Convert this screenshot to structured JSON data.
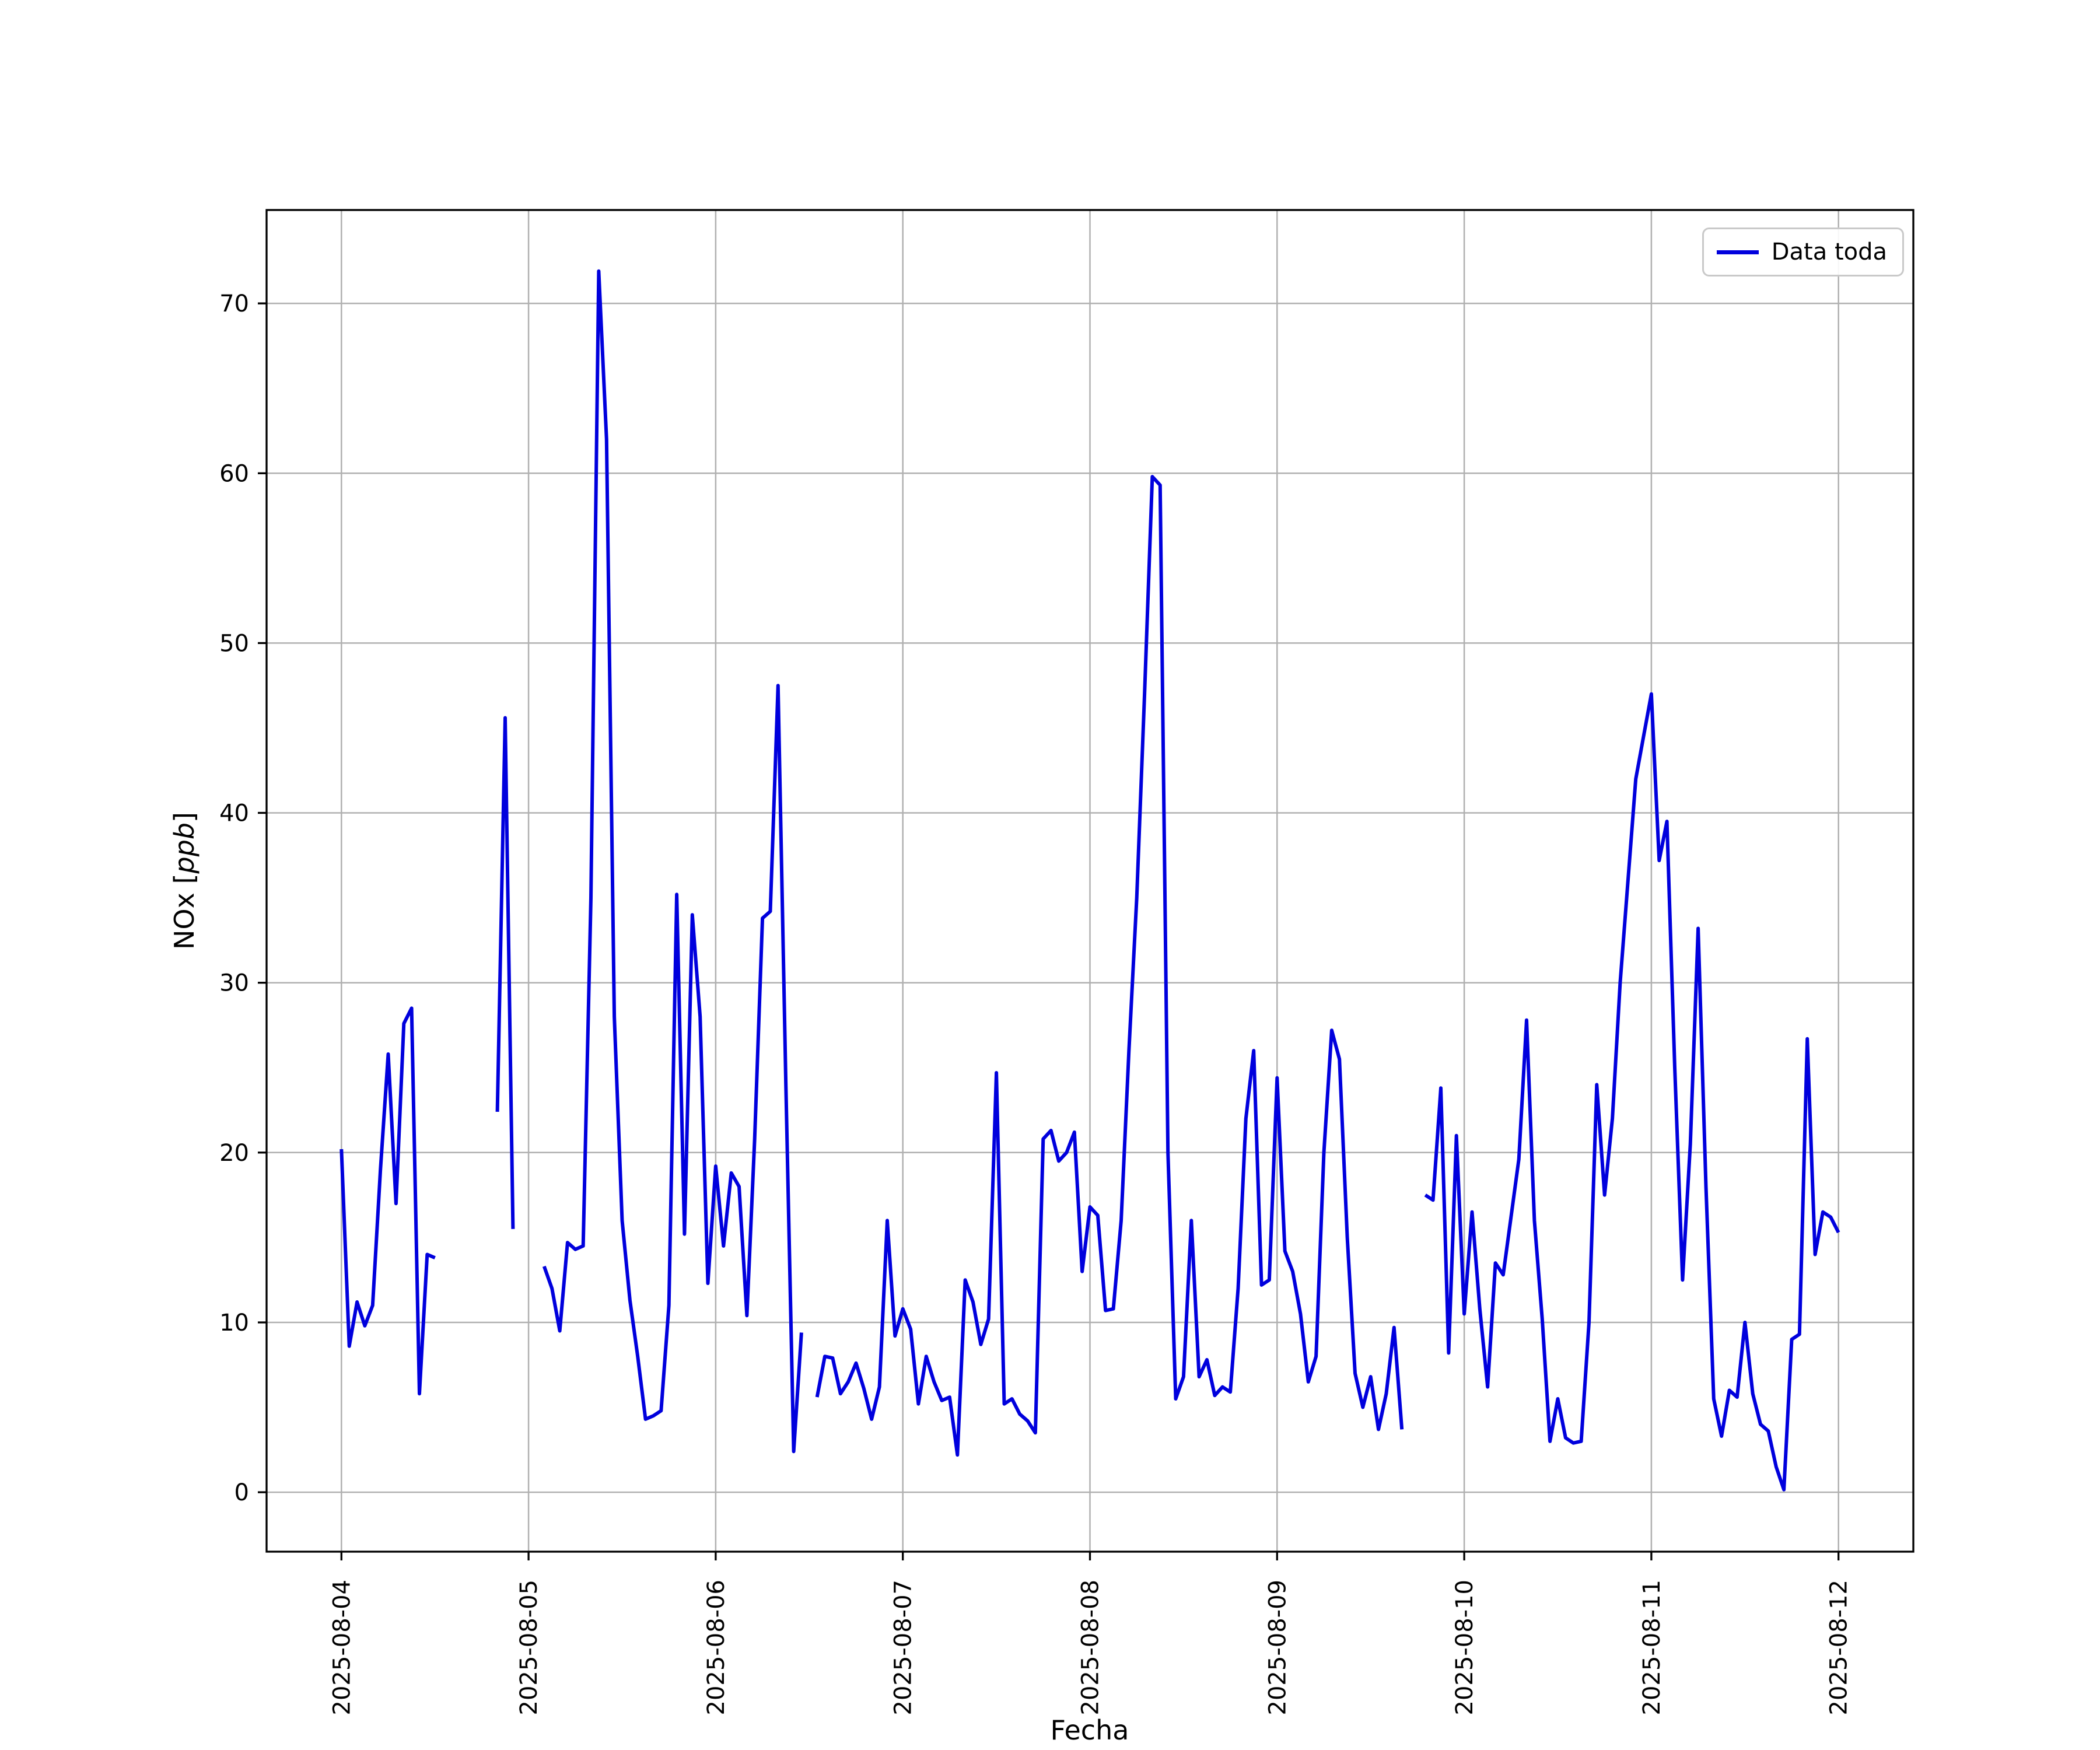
{
  "figure": {
    "background": "#ffffff",
    "axes_background": "#ffffff"
  },
  "chart_data": {
    "type": "line",
    "title": "",
    "xlabel": "Fecha",
    "ylabel": "NOx [ppb]",
    "ylabel_parts": {
      "prefix": "NOx [",
      "math": "ppb",
      "suffix": "]"
    },
    "legend": {
      "label": "Data toda",
      "position": "upper right"
    },
    "line_color": "#0000dd",
    "grid": true,
    "grid_color": "#b0b0b0",
    "spine_color": "#000000",
    "x_unit": "hours since 2025-08-04 00:00",
    "xlim": [
      -9.6,
      201.6
    ],
    "ylim": [
      -3.5,
      75.5
    ],
    "yticks": [
      0,
      10,
      20,
      30,
      40,
      50,
      60,
      70
    ],
    "xticks": [
      {
        "t": 0,
        "label": "2025-08-04"
      },
      {
        "t": 24,
        "label": "2025-08-05"
      },
      {
        "t": 48,
        "label": "2025-08-06"
      },
      {
        "t": 72,
        "label": "2025-08-07"
      },
      {
        "t": 96,
        "label": "2025-08-08"
      },
      {
        "t": 120,
        "label": "2025-08-09"
      },
      {
        "t": 144,
        "label": "2025-08-10"
      },
      {
        "t": 168,
        "label": "2025-08-11"
      },
      {
        "t": 192,
        "label": "2025-08-12"
      }
    ],
    "series": [
      {
        "name": "Data toda",
        "segments": [
          [
            [
              0,
              20.2
            ],
            [
              1,
              8.6
            ],
            [
              2,
              11.2
            ],
            [
              3,
              9.8
            ],
            [
              4,
              11.0
            ],
            [
              5,
              19.0
            ],
            [
              6,
              25.8
            ],
            [
              7,
              17.0
            ],
            [
              8,
              27.6
            ],
            [
              9,
              28.5
            ],
            [
              10,
              5.8
            ],
            [
              11,
              14.0
            ],
            [
              12,
              13.8
            ]
          ],
          [
            [
              20,
              22.4
            ],
            [
              21,
              45.6
            ],
            [
              22,
              15.5
            ]
          ],
          [
            [
              26,
              13.3
            ],
            [
              27,
              12.0
            ],
            [
              28,
              9.5
            ],
            [
              29,
              14.7
            ],
            [
              30,
              14.3
            ],
            [
              31,
              14.5
            ],
            [
              32,
              35.0
            ],
            [
              33,
              71.9
            ],
            [
              34,
              62.0
            ],
            [
              35,
              28.0
            ],
            [
              36,
              16.0
            ],
            [
              37,
              11.3
            ],
            [
              38,
              8.0
            ],
            [
              39,
              4.3
            ],
            [
              40,
              4.5
            ],
            [
              41,
              4.8
            ],
            [
              42,
              11.0
            ],
            [
              43,
              35.2
            ],
            [
              44,
              15.2
            ],
            [
              45,
              34.0
            ],
            [
              46,
              28.0
            ],
            [
              47,
              12.3
            ],
            [
              48,
              19.2
            ],
            [
              49,
              14.5
            ],
            [
              50,
              18.8
            ],
            [
              51,
              18.0
            ],
            [
              52,
              10.4
            ],
            [
              53,
              20.8
            ],
            [
              54,
              33.8
            ],
            [
              55,
              34.2
            ],
            [
              56,
              47.5
            ],
            [
              57,
              24.0
            ],
            [
              58,
              2.4
            ],
            [
              59,
              9.4
            ]
          ],
          [
            [
              61,
              5.6
            ],
            [
              62,
              8.0
            ],
            [
              63,
              7.9
            ],
            [
              64,
              5.8
            ],
            [
              65,
              6.5
            ],
            [
              66,
              7.6
            ],
            [
              67,
              6.1
            ],
            [
              68,
              4.3
            ],
            [
              69,
              6.2
            ],
            [
              70,
              16.0
            ],
            [
              71,
              9.2
            ],
            [
              72,
              10.8
            ],
            [
              73,
              9.6
            ],
            [
              74,
              5.2
            ],
            [
              75,
              8.0
            ],
            [
              76,
              6.5
            ],
            [
              77,
              5.4
            ],
            [
              78,
              5.6
            ],
            [
              79,
              2.2
            ],
            [
              80,
              12.5
            ],
            [
              81,
              11.2
            ],
            [
              82,
              8.7
            ],
            [
              83,
              10.2
            ],
            [
              84,
              24.7
            ],
            [
              85,
              5.2
            ],
            [
              86,
              5.5
            ],
            [
              87,
              4.6
            ],
            [
              88,
              4.2
            ],
            [
              89,
              3.5
            ],
            [
              90,
              20.8
            ],
            [
              91,
              21.3
            ],
            [
              92,
              19.5
            ],
            [
              93,
              20.0
            ],
            [
              94,
              21.2
            ],
            [
              95,
              13.0
            ],
            [
              96,
              16.8
            ],
            [
              97,
              16.3
            ],
            [
              98,
              10.7
            ],
            [
              99,
              10.8
            ],
            [
              100,
              16.0
            ],
            [
              101,
              26.0
            ],
            [
              102,
              35.0
            ],
            [
              103,
              47.0
            ],
            [
              104,
              59.8
            ],
            [
              105,
              59.3
            ],
            [
              106,
              20.0
            ],
            [
              107,
              5.5
            ],
            [
              108,
              6.8
            ],
            [
              109,
              16.0
            ],
            [
              110,
              6.8
            ],
            [
              111,
              7.8
            ],
            [
              112,
              5.7
            ],
            [
              113,
              6.2
            ],
            [
              114,
              5.9
            ],
            [
              115,
              12.0
            ],
            [
              116,
              22.0
            ],
            [
              117,
              26.0
            ],
            [
              118,
              12.2
            ],
            [
              119,
              12.5
            ],
            [
              120,
              24.4
            ],
            [
              121,
              14.2
            ],
            [
              122,
              13.0
            ],
            [
              123,
              10.5
            ],
            [
              124,
              6.5
            ],
            [
              125,
              8.0
            ],
            [
              126,
              20.0
            ],
            [
              127,
              27.2
            ],
            [
              128,
              25.5
            ],
            [
              129,
              15.0
            ],
            [
              130,
              7.0
            ],
            [
              131,
              5.0
            ],
            [
              132,
              6.8
            ],
            [
              133,
              3.7
            ],
            [
              134,
              5.8
            ],
            [
              135,
              9.7
            ],
            [
              136,
              3.7
            ]
          ],
          [
            [
              139,
              17.5
            ],
            [
              140,
              17.2
            ],
            [
              141,
              23.8
            ],
            [
              142,
              8.2
            ],
            [
              143,
              21.0
            ],
            [
              144,
              10.5
            ],
            [
              145,
              16.5
            ],
            [
              146,
              10.8
            ],
            [
              147,
              6.2
            ],
            [
              148,
              13.5
            ],
            [
              149,
              12.8
            ],
            [
              150,
              16.2
            ],
            [
              151,
              19.6
            ],
            [
              152,
              27.8
            ],
            [
              153,
              16.0
            ],
            [
              154,
              10.2
            ],
            [
              155,
              3.0
            ],
            [
              156,
              5.5
            ],
            [
              157,
              3.2
            ],
            [
              158,
              2.9
            ],
            [
              159,
              3.0
            ],
            [
              160,
              10.0
            ],
            [
              161,
              24.0
            ],
            [
              162,
              17.5
            ],
            [
              163,
              22.0
            ],
            [
              164,
              30.0
            ],
            [
              165,
              36.0
            ],
            [
              166,
              42.0
            ],
            [
              167,
              44.5
            ],
            [
              168,
              47.0
            ],
            [
              169,
              37.2
            ],
            [
              170,
              39.5
            ],
            [
              171,
              25.0
            ],
            [
              172,
              12.5
            ],
            [
              173,
              20.5
            ],
            [
              174,
              33.2
            ],
            [
              175,
              18.0
            ],
            [
              176,
              5.5
            ],
            [
              177,
              3.3
            ],
            [
              178,
              6.0
            ],
            [
              179,
              5.6
            ],
            [
              180,
              10.0
            ],
            [
              181,
              5.8
            ],
            [
              182,
              4.0
            ],
            [
              183,
              3.6
            ],
            [
              184,
              1.5
            ],
            [
              185,
              0.15
            ],
            [
              186,
              9.0
            ],
            [
              187,
              9.3
            ],
            [
              188,
              26.7
            ],
            [
              189,
              14.0
            ],
            [
              190,
              16.5
            ],
            [
              191,
              16.2
            ],
            [
              192,
              15.3
            ]
          ]
        ]
      }
    ]
  }
}
